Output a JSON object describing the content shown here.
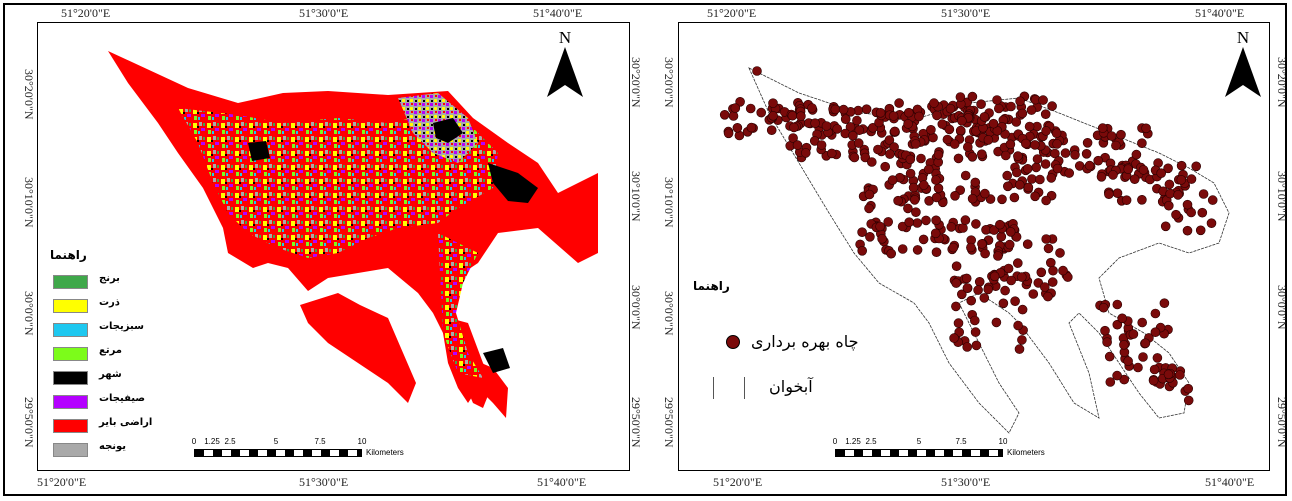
{
  "left_map": {
    "top_coords": [
      "51°20'0\"E",
      "51°30'0\"E",
      "51°40'0\"E"
    ],
    "bottom_coords": [
      "51°20'0\"E",
      "51°30'0\"E",
      "51°40'0\"E"
    ],
    "left_coords": [
      "30°20'0\"N",
      "30°10'0\"N",
      "30°0'0\"N",
      "29°50'0\"N"
    ],
    "right_coords": [
      "30°20'0\"N",
      "30°10'0\"N",
      "30°0'0\"N",
      "29°50'0\"N"
    ],
    "north_label": "N",
    "legend_title": "راهنما",
    "legend": [
      {
        "label": "برنج",
        "color": "#3fa84a"
      },
      {
        "label": "ذرت",
        "color": "#ffff00"
      },
      {
        "label": "سبزیجات",
        "color": "#1ec8f0"
      },
      {
        "label": "مرتع",
        "color": "#7cfc1a"
      },
      {
        "label": "شهر",
        "color": "#000000"
      },
      {
        "label": "صیفیجات",
        "color": "#b400ff"
      },
      {
        "label": "اراضی بایر",
        "color": "#ff0000"
      },
      {
        "label": "یونجه",
        "color": "#a9a9a9"
      }
    ],
    "scale_ticks": [
      "0",
      "1.25",
      "2.5",
      "5",
      "7.5",
      "10"
    ],
    "scale_unit": "Kilometers"
  },
  "right_map": {
    "top_coords": [
      "51°20'0\"E",
      "51°30'0\"E",
      "51°40'0\"E"
    ],
    "bottom_coords": [
      "51°20'0\"E",
      "51°30'0\"E",
      "51°40'0\"E"
    ],
    "left_coords": [
      "30°20'0\"N",
      "30°10'0\"N",
      "30°0'0\"N",
      "29°50'0\"N"
    ],
    "right_coords": [
      "30°20'0\"N",
      "30°10'0\"N",
      "30°0'0\"N",
      "29°50'0\"N"
    ],
    "north_label": "N",
    "legend_title": "راهنما",
    "legend_wells": "چاه بهره برداری",
    "legend_aquifer": "آبخوان",
    "well_color": "#7a0a0a",
    "scale_ticks": [
      "0",
      "1.25",
      "2.5",
      "5",
      "7.5",
      "10"
    ],
    "scale_unit": "Kilometers"
  }
}
